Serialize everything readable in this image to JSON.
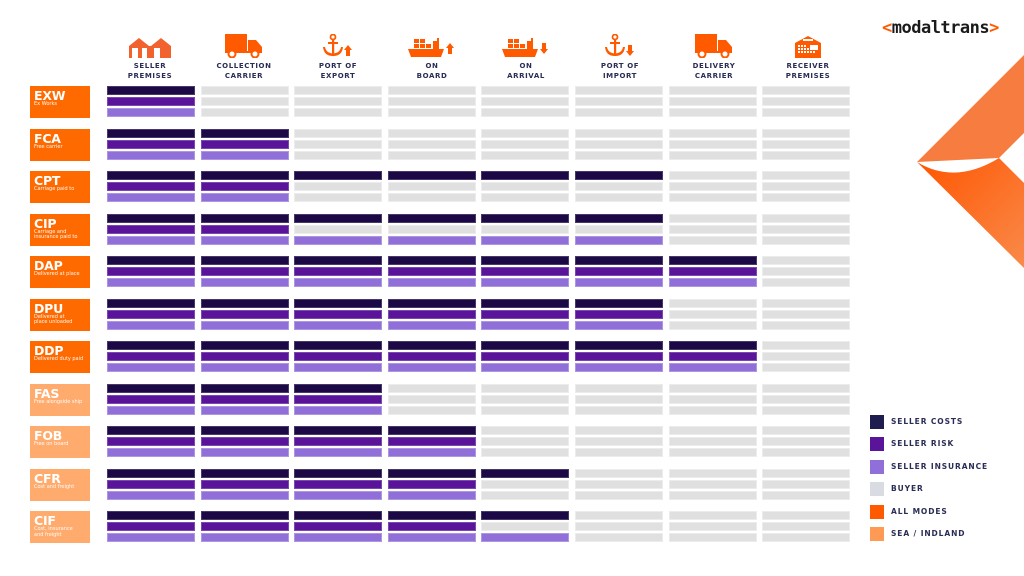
{
  "brand": {
    "logo_left": "<",
    "logo_text": "modaltrans",
    "logo_right": ">",
    "accent": "#ff5a00"
  },
  "columns": [
    {
      "label_1": "SELLER",
      "label_2": "PREMISES",
      "icon": "warehouse-icon"
    },
    {
      "label_1": "COLLECTION",
      "label_2": "CARRIER",
      "icon": "truck-icon"
    },
    {
      "label_1": "PORT OF",
      "label_2": "EXPORT",
      "icon": "anchor-up-icon"
    },
    {
      "label_1": "ON",
      "label_2": "BOARD",
      "icon": "ship-up-icon"
    },
    {
      "label_1": "ON",
      "label_2": "ARRIVAL",
      "icon": "ship-down-icon"
    },
    {
      "label_1": "PORT OF",
      "label_2": "IMPORT",
      "icon": "anchor-down-icon"
    },
    {
      "label_1": "DELIVERY",
      "label_2": "CARRIER",
      "icon": "truck-icon"
    },
    {
      "label_1": "RECEIVER",
      "label_2": "PREMISES",
      "icon": "storage-building-icon"
    }
  ],
  "terms": [
    {
      "code": "EXW",
      "desc_1": "Ex Works",
      "desc_2": "",
      "mode": "all",
      "cost": [
        1,
        0,
        0,
        0,
        0,
        0,
        0,
        0
      ],
      "risk": [
        1,
        0,
        0,
        0,
        0,
        0,
        0,
        0
      ],
      "insurance": [
        1,
        0,
        0,
        0,
        0,
        0,
        0,
        0
      ]
    },
    {
      "code": "FCA",
      "desc_1": "Free carrier",
      "desc_2": "",
      "mode": "all",
      "cost": [
        1,
        1,
        0,
        0,
        0,
        0,
        0,
        0
      ],
      "risk": [
        1,
        1,
        0,
        0,
        0,
        0,
        0,
        0
      ],
      "insurance": [
        1,
        1,
        0,
        0,
        0,
        0,
        0,
        0
      ]
    },
    {
      "code": "CPT",
      "desc_1": "Carriage paid to",
      "desc_2": "",
      "mode": "all",
      "cost": [
        1,
        1,
        1,
        1,
        1,
        1,
        0,
        0
      ],
      "risk": [
        1,
        1,
        0,
        0,
        0,
        0,
        0,
        0
      ],
      "insurance": [
        1,
        1,
        0,
        0,
        0,
        0,
        0,
        0
      ]
    },
    {
      "code": "CIP",
      "desc_1": "Carriage and",
      "desc_2": "insurance paid to",
      "mode": "all",
      "cost": [
        1,
        1,
        1,
        1,
        1,
        1,
        0,
        0
      ],
      "risk": [
        1,
        1,
        0,
        0,
        0,
        0,
        0,
        0
      ],
      "insurance": [
        1,
        1,
        1,
        1,
        1,
        1,
        0,
        0
      ]
    },
    {
      "code": "DAP",
      "desc_1": "Delivered at place",
      "desc_2": "",
      "mode": "all",
      "cost": [
        1,
        1,
        1,
        1,
        1,
        1,
        1,
        0
      ],
      "risk": [
        1,
        1,
        1,
        1,
        1,
        1,
        1,
        0
      ],
      "insurance": [
        1,
        1,
        1,
        1,
        1,
        1,
        1,
        0
      ]
    },
    {
      "code": "DPU",
      "desc_1": "Delivered at",
      "desc_2": "place unloaded",
      "mode": "all",
      "cost": [
        1,
        1,
        1,
        1,
        1,
        1,
        0,
        0
      ],
      "risk": [
        1,
        1,
        1,
        1,
        1,
        1,
        0,
        0
      ],
      "insurance": [
        1,
        1,
        1,
        1,
        1,
        1,
        0,
        0
      ]
    },
    {
      "code": "DDP",
      "desc_1": "Delivered duty paid",
      "desc_2": "",
      "mode": "all",
      "cost": [
        1,
        1,
        1,
        1,
        1,
        1,
        1,
        0
      ],
      "risk": [
        1,
        1,
        1,
        1,
        1,
        1,
        1,
        0
      ],
      "insurance": [
        1,
        1,
        1,
        1,
        1,
        1,
        1,
        0
      ]
    },
    {
      "code": "FAS",
      "desc_1": "Free alongside ship",
      "desc_2": "",
      "mode": "sea",
      "cost": [
        1,
        1,
        1,
        0,
        0,
        0,
        0,
        0
      ],
      "risk": [
        1,
        1,
        1,
        0,
        0,
        0,
        0,
        0
      ],
      "insurance": [
        1,
        1,
        1,
        0,
        0,
        0,
        0,
        0
      ]
    },
    {
      "code": "FOB",
      "desc_1": "Free on board",
      "desc_2": "",
      "mode": "sea",
      "cost": [
        1,
        1,
        1,
        1,
        0,
        0,
        0,
        0
      ],
      "risk": [
        1,
        1,
        1,
        1,
        0,
        0,
        0,
        0
      ],
      "insurance": [
        1,
        1,
        1,
        1,
        0,
        0,
        0,
        0
      ]
    },
    {
      "code": "CFR",
      "desc_1": "Cost and freight",
      "desc_2": "",
      "mode": "sea",
      "cost": [
        1,
        1,
        1,
        1,
        1,
        0,
        0,
        0
      ],
      "risk": [
        1,
        1,
        1,
        1,
        0,
        0,
        0,
        0
      ],
      "insurance": [
        1,
        1,
        1,
        1,
        0,
        0,
        0,
        0
      ]
    },
    {
      "code": "CIF",
      "desc_1": "Cost, insurance",
      "desc_2": "and freight",
      "mode": "sea",
      "cost": [
        1,
        1,
        1,
        1,
        1,
        0,
        0,
        0
      ],
      "risk": [
        1,
        1,
        1,
        1,
        0,
        0,
        0,
        0
      ],
      "insurance": [
        1,
        1,
        1,
        1,
        1,
        0,
        0,
        0
      ]
    }
  ],
  "legend": [
    {
      "label": "SELLER COSTS",
      "color": "#1f1d4f"
    },
    {
      "label": "SELLER RISK",
      "color": "#5a1499"
    },
    {
      "label": "SELLER INSURANCE",
      "color": "#9070d8"
    },
    {
      "label": "BUYER",
      "color": "#d9dbe3"
    },
    {
      "label": "ALL MODES",
      "color": "#ff5a00"
    },
    {
      "label": "SEA / INDLAND",
      "color": "#ff9a55"
    }
  ],
  "colors": {
    "seller_costs": "#1c0845",
    "seller_risk": "#5a1499",
    "seller_insurance": "#9070d8",
    "buyer": "#e0e0e0",
    "all_modes": "#ff6a00",
    "sea_inland": "#ffab6e",
    "header_text": "#2a2d55"
  }
}
